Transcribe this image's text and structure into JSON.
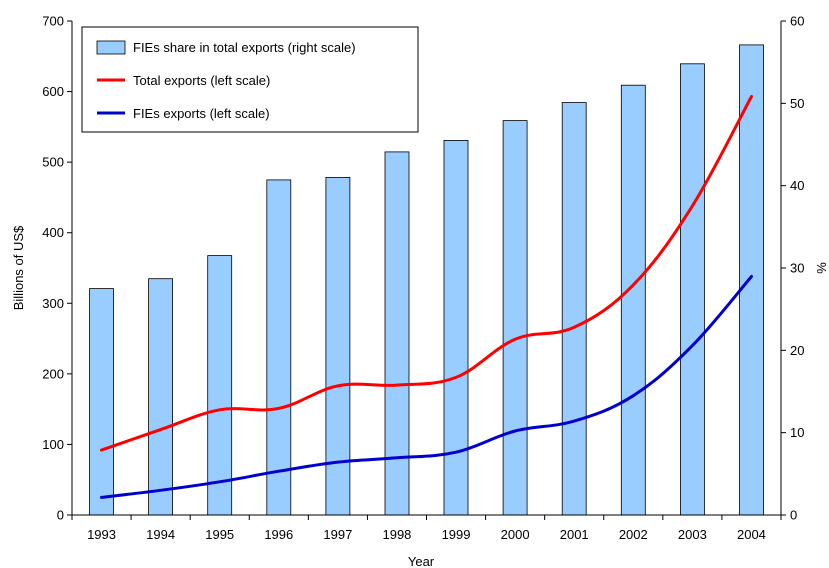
{
  "chart_data": {
    "type": "bar+line",
    "categories": [
      "1993",
      "1994",
      "1995",
      "1996",
      "1997",
      "1998",
      "1999",
      "2000",
      "2001",
      "2002",
      "2003",
      "2004"
    ],
    "xlabel": "Year",
    "ylabel_left": "Billions of US$",
    "ylabel_right": "%",
    "ylim_left": [
      0,
      700
    ],
    "ylim_right": [
      0,
      60
    ],
    "yticks_left": [
      "0",
      "100",
      "200",
      "300",
      "400",
      "500",
      "600",
      "700"
    ],
    "yticks_right": [
      "0",
      "10",
      "20",
      "30",
      "40",
      "50",
      "60"
    ],
    "grid": false,
    "legend_position": "top-left",
    "series": [
      {
        "name": "FIEs share in total exports (right scale)",
        "kind": "bar",
        "axis": "right",
        "color": "#99ccff",
        "values": [
          27.5,
          28.7,
          31.5,
          40.7,
          41.0,
          44.1,
          45.5,
          47.9,
          50.1,
          52.2,
          54.8,
          57.1
        ]
      },
      {
        "name": "Total exports (left scale)",
        "kind": "line",
        "axis": "left",
        "color": "#ff0000",
        "values": [
          92,
          121,
          149,
          151,
          183,
          184,
          195,
          249,
          266,
          326,
          438,
          593
        ]
      },
      {
        "name": "FIEs exports (left scale)",
        "kind": "line",
        "axis": "left",
        "color": "#0000cc",
        "values": [
          25,
          35,
          47,
          62,
          75,
          81,
          89,
          119,
          133,
          169,
          240,
          338
        ]
      }
    ]
  }
}
